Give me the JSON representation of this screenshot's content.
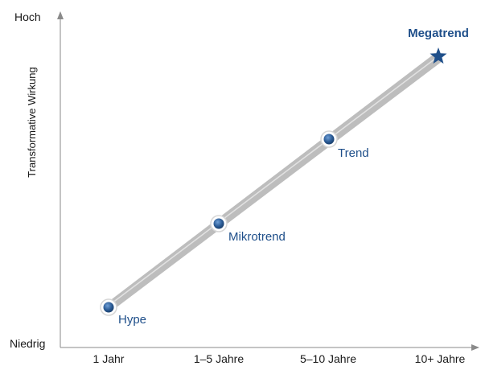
{
  "axes": {
    "y_top_label": "Hoch",
    "y_bottom_label": "Niedrig",
    "y_title": "Transformative Wirkung",
    "x_ticks": [
      "1 Jahr",
      "1–5 Jahre",
      "5–10 Jahre",
      "10+ Jahre"
    ]
  },
  "stages": [
    {
      "name": "Hype",
      "marker": "circle"
    },
    {
      "name": "Mikrotrend",
      "marker": "circle"
    },
    {
      "name": "Trend",
      "marker": "circle"
    },
    {
      "name": "Megatrend",
      "marker": "star"
    }
  ],
  "colors": {
    "accent": "#1f4f8a",
    "marker_fill": "#2a5a94",
    "path": "#b9b9b9",
    "axis": "#8a8a8a",
    "text": "#1a1a1a"
  },
  "icons": {
    "stage_marker": "circle-marker-icon",
    "final_marker": "star-icon"
  }
}
